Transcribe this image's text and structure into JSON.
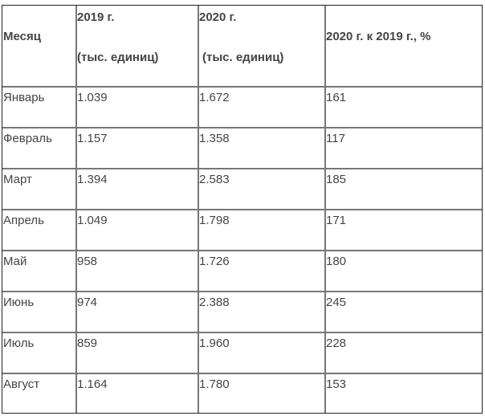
{
  "headers": {
    "month": "Месяц",
    "y2019_line1": "2019 г.",
    "y2019_line2": "(тыс. единиц)",
    "y2020_line1": "2020 г.",
    "y2020_line2": "(тыс. единиц)",
    "ratio": "2020 г. к 2019 г., %"
  },
  "rows": [
    {
      "month": "Январь",
      "y2019": "1.039",
      "y2020": "1.672",
      "ratio": "161"
    },
    {
      "month": "Февраль",
      "y2019": "1.157",
      "y2020": "1.358",
      "ratio": "117"
    },
    {
      "month": "Март",
      "y2019": "1.394",
      "y2020": "2.583",
      "ratio": "185"
    },
    {
      "month": "Апрель",
      "y2019": "1.049",
      "y2020": "1.798",
      "ratio": "171"
    },
    {
      "month": "Май",
      "y2019": "958",
      "y2020": "1.726",
      "ratio": "180"
    },
    {
      "month": "Июнь",
      "y2019": "974",
      "y2020": "2.388",
      "ratio": "245"
    },
    {
      "month": "Июль",
      "y2019": "859",
      "y2020": "1.960",
      "ratio": "228"
    },
    {
      "month": "Август",
      "y2019": "1.164",
      "y2020": "1.780",
      "ratio": "153"
    }
  ]
}
